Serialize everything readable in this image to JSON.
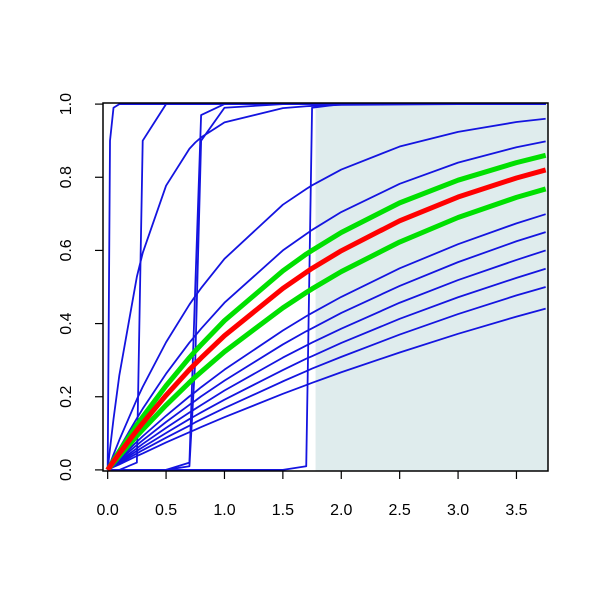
{
  "chart_data": {
    "type": "line",
    "x": [
      0,
      0.02,
      0.05,
      0.1,
      0.25,
      0.3,
      0.5,
      0.7,
      0.75,
      0.8,
      1,
      1.5,
      1.7,
      1.75,
      2,
      2.5,
      3,
      3.5,
      3.75
    ],
    "highlight_xrange": [
      1.78,
      3.77
    ],
    "highlight_color": "#dfeced",
    "series": [
      {
        "color": "#1414e0",
        "values": [
          0,
          0.017,
          0.042,
          0.082,
          0.193,
          0.227,
          0.349,
          0.452,
          0.475,
          0.497,
          0.577,
          0.725,
          0.768,
          0.778,
          0.821,
          0.884,
          0.924,
          0.951,
          0.96
        ]
      },
      {
        "color": "#1414e0",
        "values": [
          0,
          0.012,
          0.03,
          0.059,
          0.141,
          0.167,
          0.263,
          0.348,
          0.367,
          0.386,
          0.457,
          0.6,
          0.645,
          0.656,
          0.705,
          0.782,
          0.84,
          0.882,
          0.898
        ]
      },
      {
        "color": "#1414e0",
        "values": [
          0,
          0.006,
          0.016,
          0.031,
          0.077,
          0.092,
          0.148,
          0.201,
          0.213,
          0.226,
          0.274,
          0.381,
          0.42,
          0.429,
          0.473,
          0.551,
          0.617,
          0.674,
          0.699
        ]
      },
      {
        "color": "#1414e0",
        "values": [
          0,
          0.006,
          0.014,
          0.028,
          0.068,
          0.081,
          0.131,
          0.178,
          0.189,
          0.201,
          0.244,
          0.343,
          0.379,
          0.387,
          0.429,
          0.503,
          0.568,
          0.625,
          0.65
        ]
      },
      {
        "color": "#1414e0",
        "values": [
          0,
          0.005,
          0.012,
          0.024,
          0.059,
          0.071,
          0.115,
          0.157,
          0.167,
          0.177,
          0.217,
          0.307,
          0.34,
          0.348,
          0.386,
          0.457,
          0.519,
          0.574,
          0.6
        ]
      },
      {
        "color": "#1414e0",
        "values": [
          0,
          0.004,
          0.011,
          0.021,
          0.052,
          0.062,
          0.101,
          0.139,
          0.148,
          0.157,
          0.192,
          0.273,
          0.304,
          0.311,
          0.347,
          0.413,
          0.472,
          0.525,
          0.55
        ]
      },
      {
        "color": "#1414e0",
        "values": [
          0,
          0.004,
          0.009,
          0.018,
          0.045,
          0.054,
          0.088,
          0.121,
          0.13,
          0.138,
          0.169,
          0.242,
          0.27,
          0.277,
          0.309,
          0.37,
          0.426,
          0.477,
          0.5
        ]
      },
      {
        "color": "#1414e0",
        "values": [
          0,
          0.003,
          0.008,
          0.015,
          0.038,
          0.045,
          0.075,
          0.103,
          0.11,
          0.117,
          0.144,
          0.208,
          0.232,
          0.238,
          0.267,
          0.321,
          0.372,
          0.419,
          0.441
        ]
      },
      {
        "color": "#1414e0",
        "values": [
          0,
          0.058,
          0.139,
          0.259,
          0.528,
          0.593,
          0.777,
          0.878,
          0.895,
          0.909,
          0.95,
          0.989,
          0.994,
          0.995,
          0.998,
          0.999,
          1,
          1,
          1
        ]
      },
      {
        "color": "#1414e0",
        "values": [
          0,
          0.9,
          0.99,
          1,
          1,
          1,
          1,
          1,
          1,
          1,
          1,
          1,
          1,
          1,
          1,
          1,
          1,
          1,
          1
        ]
      },
      {
        "color": "#1414e0",
        "values": [
          0,
          0,
          0,
          0,
          0.02,
          0.9,
          1,
          1,
          1,
          1,
          1,
          1,
          1,
          1,
          1,
          1,
          1,
          1,
          1
        ]
      },
      {
        "color": "#1414e0",
        "values": [
          0,
          0,
          0,
          0,
          0,
          0,
          0,
          0.02,
          0.5,
          0.97,
          1,
          1,
          1,
          1,
          1,
          1,
          1,
          1,
          1
        ]
      },
      {
        "color": "#1414e0",
        "values": [
          0,
          0,
          0,
          0,
          0,
          0,
          0,
          0.01,
          0.3,
          0.9,
          0.99,
          1,
          1,
          1,
          1,
          1,
          1,
          1,
          1
        ]
      },
      {
        "color": "#1414e0",
        "values": [
          0,
          0,
          0,
          0,
          0,
          0,
          0,
          0,
          0,
          0,
          0,
          0,
          0.01,
          0.99,
          1,
          1,
          1,
          1,
          1
        ]
      },
      {
        "color": "#00e000",
        "width": 5,
        "values": [
          0,
          0.01,
          0.026,
          0.051,
          0.123,
          0.145,
          0.23,
          0.307,
          0.325,
          0.342,
          0.408,
          0.544,
          0.59,
          0.6,
          0.649,
          0.73,
          0.792,
          0.84,
          0.86
        ]
      },
      {
        "color": "#00e000",
        "width": 5,
        "values": [
          0,
          0.008,
          0.019,
          0.038,
          0.093,
          0.11,
          0.177,
          0.239,
          0.254,
          0.268,
          0.323,
          0.443,
          0.485,
          0.495,
          0.542,
          0.623,
          0.69,
          0.745,
          0.768
        ]
      },
      {
        "color": "#ff0000",
        "width": 5,
        "values": [
          0,
          0.009,
          0.023,
          0.045,
          0.108,
          0.128,
          0.204,
          0.274,
          0.29,
          0.306,
          0.367,
          0.496,
          0.54,
          0.551,
          0.599,
          0.681,
          0.746,
          0.798,
          0.82
        ]
      }
    ],
    "xlim": [
      -0.04,
      3.77
    ],
    "ylim": [
      -0.003,
      1.003
    ],
    "xticks": [
      {
        "value": 0,
        "label": "0.0"
      },
      {
        "value": 0.5,
        "label": "0.5"
      },
      {
        "value": 1,
        "label": "1.0"
      },
      {
        "value": 1.5,
        "label": "1.5"
      },
      {
        "value": 2,
        "label": "2.0"
      },
      {
        "value": 2.5,
        "label": "2.5"
      },
      {
        "value": 3,
        "label": "3.0"
      },
      {
        "value": 3.5,
        "label": "3.5"
      }
    ],
    "yticks": [
      {
        "value": 0,
        "label": "0.0"
      },
      {
        "value": 0.2,
        "label": "0.2"
      },
      {
        "value": 0.4,
        "label": "0.4"
      },
      {
        "value": 0.6,
        "label": "0.6"
      },
      {
        "value": 0.8,
        "label": "0.8"
      },
      {
        "value": 1,
        "label": "1.0"
      }
    ]
  }
}
